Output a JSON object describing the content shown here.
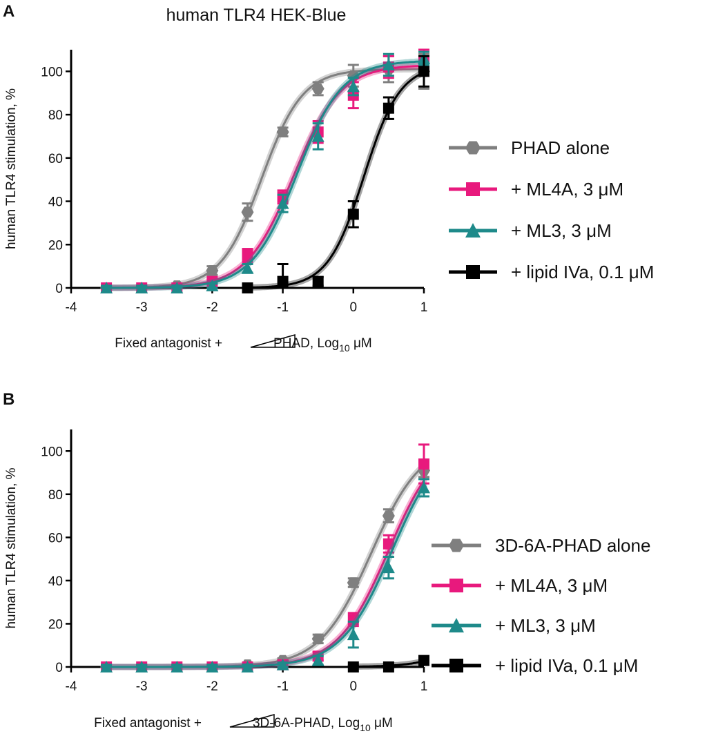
{
  "chart_data": [
    {
      "panel": "A",
      "type": "line",
      "title": "human TLR4 HEK-Blue",
      "xlabel_prefix": "Fixed antagonist +",
      "xlabel_suffix": "PHAD, Log",
      "xlabel_sub": "10",
      "xlabel_unit": " μM",
      "ylabel": "human TLR4 stimulation, %",
      "xlim": [
        -4,
        1
      ],
      "ylim": [
        0,
        110
      ],
      "xticks": [
        -4,
        -3,
        -2,
        -1,
        0,
        1
      ],
      "xtick_labels": [
        "-4",
        "-3",
        "-2",
        "-1",
        "0",
        "1"
      ],
      "yticks": [
        0,
        20,
        40,
        60,
        80,
        100
      ],
      "ytick_labels": [
        "0",
        "20",
        "40",
        "60",
        "80",
        "100"
      ],
      "grid": false,
      "legend_position": "right",
      "series": [
        {
          "name": "PHAD  alone",
          "color": "#7f7f7f",
          "marker": "hexagon",
          "ec50": -1.3,
          "hill": 1.5,
          "top": 101,
          "x": [
            -3.5,
            -3,
            -2.5,
            -2,
            -1.5,
            -1,
            -0.5,
            0,
            0.5,
            1
          ],
          "y": [
            0,
            0,
            1,
            8,
            35,
            72,
            92,
            98,
            101,
            100
          ],
          "err": [
            1,
            1,
            1,
            2,
            4,
            2,
            3,
            5,
            6,
            8
          ]
        },
        {
          "name": "+ ML4A, 3 μM",
          "color": "#e8197d",
          "marker": "square",
          "ec50": -0.85,
          "hill": 1.3,
          "top": 103,
          "x": [
            -3.5,
            -3,
            -2.5,
            -2,
            -1.5,
            -1,
            -0.5,
            0,
            0.5,
            1
          ],
          "y": [
            0,
            0,
            0,
            3,
            15,
            42,
            72,
            89,
            102,
            104
          ],
          "err": [
            1,
            1,
            1,
            1,
            3,
            3,
            5,
            6,
            5,
            6
          ]
        },
        {
          "name": "+ ML3, 3 μM",
          "color": "#1e8a8a",
          "marker": "triangle",
          "ec50": -0.8,
          "hill": 1.35,
          "top": 105,
          "x": [
            -3.5,
            -3,
            -2.5,
            -2,
            -1.5,
            -1,
            -0.5,
            0,
            0.5,
            1
          ],
          "y": [
            0,
            0,
            0,
            1,
            9,
            39,
            70,
            93,
            103,
            106
          ],
          "err": [
            1,
            1,
            1,
            1,
            2,
            4,
            6,
            4,
            5,
            3
          ]
        },
        {
          "name": "+ lipid IVa, 0.1 μM",
          "color": "#000000",
          "marker": "square",
          "ec50": 0.15,
          "hill": 1.7,
          "top": 103,
          "x": [
            -1.5,
            -1,
            -0.5,
            0,
            0.5,
            1
          ],
          "y": [
            0,
            3,
            3,
            34,
            83,
            100
          ],
          "err": [
            1,
            8,
            2,
            6,
            5,
            7
          ]
        }
      ]
    },
    {
      "panel": "B",
      "type": "line",
      "title": "",
      "xlabel_prefix": "Fixed antagonist +",
      "xlabel_suffix": "3D-6A-PHAD, Log",
      "xlabel_sub": "10",
      "xlabel_unit": " μM",
      "ylabel": "human  TLR4 stimulation, %",
      "xlim": [
        -4,
        1
      ],
      "ylim": [
        0,
        110
      ],
      "xticks": [
        -4,
        -3,
        -2,
        -1,
        0,
        1
      ],
      "xtick_labels": [
        "-4",
        "-3",
        "-2",
        "-1",
        "0",
        "1"
      ],
      "yticks": [
        0,
        20,
        40,
        60,
        80,
        100
      ],
      "ytick_labels": [
        "0",
        "20",
        "40",
        "60",
        "80",
        "100"
      ],
      "grid": false,
      "legend_position": "right",
      "series": [
        {
          "name": "3D-6A-PHAD  alone",
          "color": "#7f7f7f",
          "marker": "hexagon",
          "ec50": 0.25,
          "hill": 1.2,
          "top": 105,
          "x": [
            -3.5,
            -3,
            -2.5,
            -2,
            -1.5,
            -1,
            -0.5,
            0,
            0.5,
            1
          ],
          "y": [
            0,
            0,
            0,
            0,
            1,
            3,
            13,
            39,
            70,
            91
          ],
          "err": [
            1,
            1,
            1,
            1,
            1,
            1,
            2,
            2,
            3,
            3
          ]
        },
        {
          "name": "+ ML4A, 3 μM",
          "color": "#e8197d",
          "marker": "square",
          "ec50": 0.5,
          "hill": 1.2,
          "top": 108,
          "x": [
            -3.5,
            -3,
            -2.5,
            -2,
            -1.5,
            -1,
            -0.5,
            0,
            0.5,
            1
          ],
          "y": [
            0,
            0,
            0,
            0,
            0,
            1,
            5,
            22,
            57,
            94
          ],
          "err": [
            1,
            1,
            1,
            1,
            1,
            1,
            2,
            3,
            4,
            9
          ]
        },
        {
          "name": "+ ML3, 3 μM",
          "color": "#1e8a8a",
          "marker": "triangle",
          "ec50": 0.55,
          "hill": 1.2,
          "top": 108,
          "x": [
            -3.5,
            -3,
            -2.5,
            -2,
            -1.5,
            -1,
            -0.5,
            0,
            0.5,
            1
          ],
          "y": [
            0,
            0,
            0,
            0,
            0,
            1,
            3,
            15,
            46,
            83
          ],
          "err": [
            1,
            1,
            1,
            1,
            1,
            1,
            2,
            6,
            5,
            4
          ]
        },
        {
          "name": "+ lipid IVa, 0.1 μM",
          "color": "#000000",
          "marker": "square",
          "ec50": 2.2,
          "hill": 1.3,
          "top": 100,
          "x": [
            0,
            0.5,
            1
          ],
          "y": [
            0,
            0,
            3
          ],
          "err": [
            0.5,
            0.5,
            0.5
          ]
        }
      ]
    }
  ]
}
